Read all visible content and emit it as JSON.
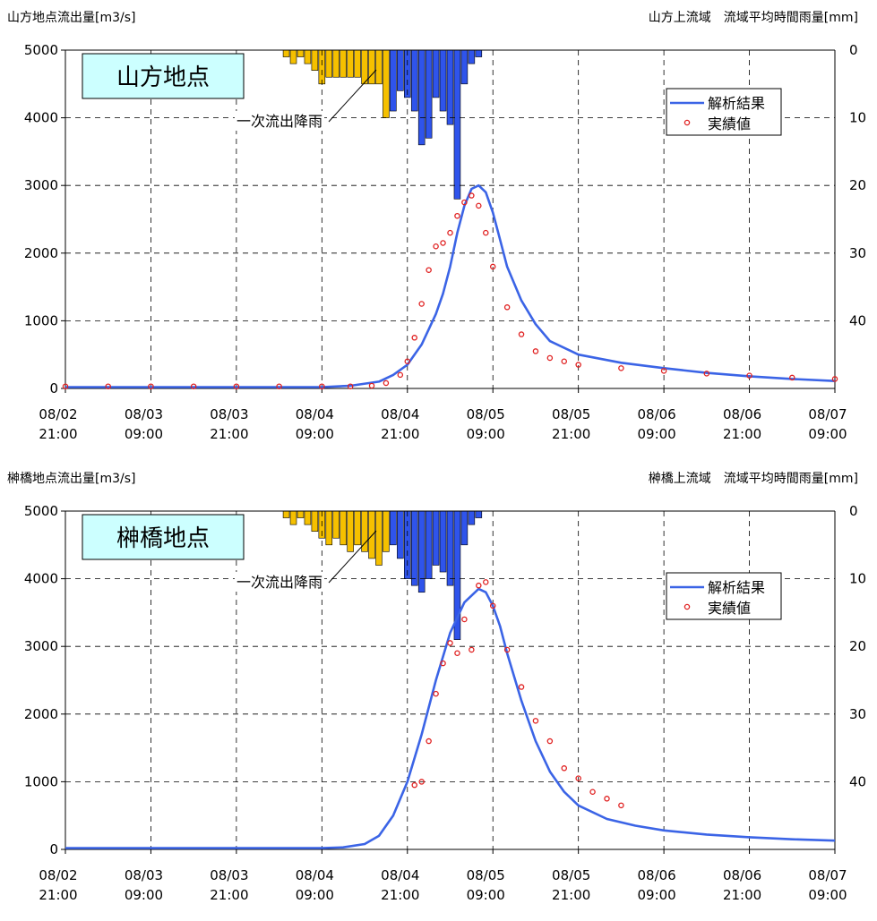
{
  "colors": {
    "analysis_line": "#3b64e6",
    "observed_marker": "#e02020",
    "rain_first_runoff": "#f5c000",
    "rain_main": "#2f54eb",
    "station_box_fill": "#ccffff",
    "grid": "#000000"
  },
  "x_tick_labels": [
    {
      "date": "08/02",
      "time": "21:00"
    },
    {
      "date": "08/03",
      "time": "09:00"
    },
    {
      "date": "08/03",
      "time": "21:00"
    },
    {
      "date": "08/04",
      "time": "09:00"
    },
    {
      "date": "08/04",
      "time": "21:00"
    },
    {
      "date": "08/05",
      "time": "09:00"
    },
    {
      "date": "08/05",
      "time": "21:00"
    },
    {
      "date": "08/06",
      "time": "09:00"
    },
    {
      "date": "08/06",
      "time": "21:00"
    },
    {
      "date": "08/07",
      "time": "09:00"
    }
  ],
  "chart_data": [
    {
      "type": "line",
      "title": "山方地点",
      "ylabel": "山方地点流出量[m3/s]",
      "ylabel_right": "山方上流域　流域平均時間雨量[mm]",
      "ylim": [
        0,
        5000
      ],
      "y_ticks": [
        0,
        1000,
        2000,
        3000,
        4000,
        5000
      ],
      "y2_ticks": [
        0,
        10,
        20,
        30,
        40
      ],
      "x_range_hours": [
        0,
        108
      ],
      "annotation": "一次流出降雨",
      "legend": [
        "解析結果",
        "実績値"
      ],
      "series": [
        {
          "name": "解析結果",
          "x": [
            0,
            12,
            24,
            36,
            40,
            44,
            46,
            48,
            50,
            52,
            53,
            54,
            55,
            56,
            57,
            58,
            59,
            60,
            61,
            62,
            64,
            66,
            68,
            72,
            78,
            84,
            90,
            96,
            102,
            108
          ],
          "values": [
            20,
            20,
            20,
            20,
            40,
            100,
            200,
            350,
            650,
            1100,
            1400,
            1800,
            2300,
            2700,
            2950,
            3000,
            2900,
            2600,
            2200,
            1800,
            1300,
            950,
            700,
            500,
            380,
            300,
            230,
            180,
            140,
            110
          ]
        },
        {
          "name": "実績値",
          "x": [
            0,
            6,
            12,
            18,
            24,
            30,
            36,
            40,
            43,
            45,
            47,
            48,
            49,
            50,
            51,
            52,
            53,
            54,
            55,
            56,
            57,
            58,
            59,
            60,
            62,
            64,
            66,
            68,
            70,
            72,
            78,
            84,
            90,
            96,
            102,
            108
          ],
          "values": [
            30,
            30,
            30,
            30,
            30,
            30,
            30,
            30,
            40,
            80,
            200,
            400,
            750,
            1250,
            1750,
            2100,
            2150,
            2300,
            2550,
            2750,
            2850,
            2700,
            2300,
            1800,
            1200,
            800,
            550,
            450,
            400,
            350,
            300,
            260,
            220,
            190,
            160,
            140
          ]
        }
      ],
      "rain": {
        "x": [
          30,
          31,
          32,
          33,
          34,
          35,
          36,
          37,
          38,
          39,
          40,
          41,
          42,
          43,
          44,
          45,
          46,
          47,
          48,
          49,
          50,
          51,
          52,
          53,
          54,
          55,
          56,
          57,
          58
        ],
        "values": [
          0,
          1,
          2,
          1,
          2,
          3,
          5,
          4,
          4,
          4,
          4,
          4,
          5,
          5,
          5,
          10,
          9,
          6,
          7,
          9,
          14,
          13,
          7,
          9,
          11,
          22,
          5,
          2,
          1
        ],
        "main_from_index": 16
      }
    },
    {
      "type": "line",
      "title": "榊橋地点",
      "ylabel": "榊橋地点流出量[m3/s]",
      "ylabel_right": "榊橋上流域　流域平均時間雨量[mm]",
      "ylim": [
        0,
        5000
      ],
      "y_ticks": [
        0,
        1000,
        2000,
        3000,
        4000,
        5000
      ],
      "y2_ticks": [
        0,
        10,
        20,
        30,
        40
      ],
      "x_range_hours": [
        0,
        108
      ],
      "annotation": "一次流出降雨",
      "legend": [
        "解析結果",
        "実績値"
      ],
      "series": [
        {
          "name": "解析結果",
          "x": [
            0,
            12,
            24,
            36,
            39,
            42,
            44,
            46,
            48,
            50,
            52,
            54,
            56,
            58,
            59,
            60,
            61,
            62,
            64,
            66,
            68,
            70,
            72,
            76,
            80,
            84,
            90,
            96,
            102,
            108
          ],
          "values": [
            20,
            20,
            20,
            20,
            30,
            80,
            200,
            500,
            1000,
            1700,
            2500,
            3200,
            3650,
            3850,
            3800,
            3600,
            3300,
            2900,
            2200,
            1600,
            1150,
            850,
            650,
            450,
            350,
            280,
            220,
            180,
            150,
            130
          ]
        },
        {
          "name": "実績値",
          "x": [
            49,
            50,
            51,
            52,
            53,
            54,
            55,
            56,
            57,
            58,
            59,
            60,
            62,
            64,
            66,
            68,
            70,
            72,
            74,
            76,
            78
          ],
          "values": [
            950,
            1000,
            1600,
            2300,
            2750,
            3050,
            2900,
            3400,
            2950,
            3900,
            3950,
            3600,
            2950,
            2400,
            1900,
            1600,
            1200,
            1050,
            850,
            750,
            650
          ]
        }
      ],
      "rain": {
        "x": [
          30,
          31,
          32,
          33,
          34,
          35,
          36,
          37,
          38,
          39,
          40,
          41,
          42,
          43,
          44,
          45,
          46,
          47,
          48,
          49,
          50,
          51,
          52,
          53,
          54,
          55,
          56,
          57,
          58
        ],
        "values": [
          0,
          1,
          2,
          1,
          2,
          3,
          4,
          5,
          4,
          5,
          6,
          5,
          6,
          7,
          8,
          6,
          5,
          7,
          10,
          11,
          12,
          10,
          8,
          9,
          11,
          19,
          5,
          2,
          1
        ],
        "main_from_index": 16
      }
    }
  ]
}
